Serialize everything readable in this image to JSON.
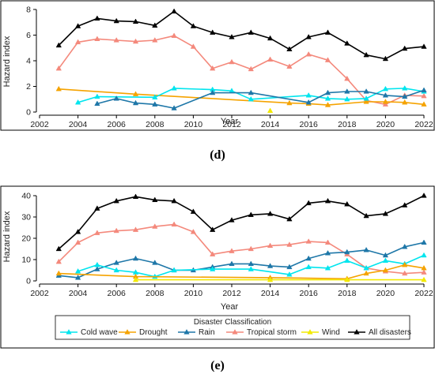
{
  "panels": [
    {
      "label": "(d)",
      "ylabel": "Hazard index",
      "xlabel": "Year"
    },
    {
      "label": "(e)",
      "ylabel": "Hazard index",
      "xlabel": "Year"
    }
  ],
  "legend": {
    "title": "Disaster Classification",
    "entries": [
      "Cold wave",
      "Drought",
      "Rain",
      "Tropical storm",
      "Wind",
      "All disasters"
    ]
  },
  "colors": {
    "Cold wave": "#00e5ee",
    "Drought": "#f5a300",
    "Rain": "#1e77a8",
    "Tropical storm": "#f4897c",
    "Wind": "#f2ea00",
    "All disasters": "#000000"
  },
  "chart_data": [
    {
      "type": "line",
      "xlabel": "Year",
      "ylabel": "Hazard index",
      "xlim": [
        2002,
        2022
      ],
      "ylim": [
        0,
        8
      ],
      "xticks": [
        2002,
        2004,
        2006,
        2008,
        2010,
        2012,
        2014,
        2016,
        2018,
        2020,
        2022
      ],
      "yticks": [
        0,
        2,
        4,
        6,
        8
      ],
      "grid": false,
      "series": [
        {
          "name": "All disasters",
          "marker": "triangle",
          "x": [
            2003,
            2004,
            2005,
            2006,
            2007,
            2008,
            2009,
            2010,
            2011,
            2012,
            2013,
            2014,
            2015,
            2016,
            2017,
            2018,
            2019,
            2020,
            2021,
            2022
          ],
          "y": [
            5.2,
            6.7,
            7.3,
            7.1,
            7.05,
            6.75,
            7.85,
            6.7,
            6.2,
            5.85,
            6.2,
            5.75,
            4.9,
            5.85,
            6.2,
            5.35,
            4.45,
            4.15,
            4.95,
            5.1
          ]
        },
        {
          "name": "Tropical storm",
          "marker": "triangle",
          "x": [
            2003,
            2004,
            2005,
            2006,
            2007,
            2008,
            2009,
            2010,
            2011,
            2012,
            2013,
            2014,
            2015,
            2016,
            2017,
            2018,
            2019,
            2020,
            2021,
            2022
          ],
          "y": [
            3.4,
            5.45,
            5.7,
            5.6,
            5.5,
            5.6,
            5.95,
            5.1,
            3.4,
            3.9,
            3.35,
            4.1,
            3.55,
            4.5,
            4.05,
            2.6,
            0.9,
            0.6,
            1.3,
            1.25
          ]
        },
        {
          "name": "Drought",
          "marker": "triangle",
          "x": [
            2003,
            2007,
            2015,
            2016,
            2017,
            2019,
            2020,
            2021,
            2022
          ],
          "y": [
            1.8,
            1.4,
            0.7,
            0.65,
            0.55,
            0.8,
            0.8,
            0.75,
            0.6
          ]
        },
        {
          "name": "Cold wave",
          "marker": "triangle",
          "x": [
            2004,
            2005,
            2008,
            2009,
            2011,
            2012,
            2013,
            2016,
            2017,
            2018,
            2019,
            2020,
            2021,
            2022
          ],
          "y": [
            0.75,
            1.2,
            1.15,
            1.85,
            1.75,
            1.65,
            1.0,
            1.3,
            1.05,
            1.0,
            1.05,
            1.8,
            1.85,
            1.6
          ]
        },
        {
          "name": "Rain",
          "marker": "triangle",
          "x": [
            2005,
            2006,
            2007,
            2008,
            2009,
            2011,
            2013,
            2016,
            2017,
            2018,
            2019,
            2020,
            2021,
            2022
          ],
          "y": [
            0.65,
            1.05,
            0.7,
            0.6,
            0.3,
            1.5,
            1.5,
            0.75,
            1.5,
            1.6,
            1.6,
            1.3,
            1.2,
            1.7
          ]
        },
        {
          "name": "Wind",
          "marker": "triangle",
          "x": [
            2014
          ],
          "y": [
            0.1
          ]
        }
      ]
    },
    {
      "type": "line",
      "xlabel": "Year",
      "ylabel": "Hazard index",
      "xlim": [
        2002,
        2022
      ],
      "ylim": [
        0,
        40
      ],
      "xticks": [
        2002,
        2004,
        2006,
        2008,
        2010,
        2012,
        2014,
        2016,
        2018,
        2020,
        2022
      ],
      "yticks": [
        0,
        10,
        20,
        30,
        40
      ],
      "grid": false,
      "legend_position": "bottom",
      "series": [
        {
          "name": "All disasters",
          "marker": "triangle",
          "x": [
            2003,
            2004,
            2005,
            2006,
            2007,
            2008,
            2009,
            2010,
            2011,
            2012,
            2013,
            2014,
            2015,
            2016,
            2017,
            2018,
            2019,
            2020,
            2021,
            2022
          ],
          "y": [
            15,
            23,
            34,
            37.5,
            39.5,
            38,
            37.5,
            32.5,
            24,
            28.5,
            31,
            31.5,
            29,
            36.5,
            37.5,
            36,
            30.5,
            31.5,
            35.5,
            40
          ]
        },
        {
          "name": "Tropical storm",
          "marker": "triangle",
          "x": [
            2003,
            2004,
            2005,
            2006,
            2007,
            2008,
            2009,
            2010,
            2011,
            2012,
            2013,
            2014,
            2015,
            2016,
            2017,
            2018,
            2019,
            2020,
            2021,
            2022
          ],
          "y": [
            9,
            18,
            22.5,
            23.5,
            24,
            25.5,
            26.5,
            23,
            12.5,
            14,
            15,
            16.5,
            17,
            18.5,
            18,
            12.5,
            6,
            4.5,
            3.5,
            4
          ]
        },
        {
          "name": "Rain",
          "marker": "triangle",
          "x": [
            2003,
            2004,
            2005,
            2006,
            2007,
            2008,
            2009,
            2010,
            2011,
            2012,
            2013,
            2014,
            2015,
            2016,
            2017,
            2018,
            2019,
            2020,
            2021,
            2022
          ],
          "y": [
            2.5,
            1.5,
            5.5,
            8.5,
            10.5,
            8.5,
            5,
            5,
            6.5,
            8,
            8,
            7,
            6.5,
            10.5,
            13,
            13.5,
            14.5,
            12,
            16,
            18
          ]
        },
        {
          "name": "Cold wave",
          "marker": "triangle",
          "x": [
            2004,
            2005,
            2006,
            2007,
            2008,
            2009,
            2011,
            2013,
            2015,
            2016,
            2017,
            2018,
            2019,
            2020,
            2021,
            2022
          ],
          "y": [
            4.5,
            7.5,
            5,
            4,
            2,
            5,
            5.5,
            5.5,
            3,
            6.5,
            6,
            9.5,
            6,
            9.5,
            8,
            12
          ]
        },
        {
          "name": "Drought",
          "marker": "triangle",
          "x": [
            2003,
            2007,
            2014,
            2018,
            2019,
            2020,
            2021,
            2022
          ],
          "y": [
            3.5,
            2,
            1.5,
            1,
            3.5,
            5,
            7.5,
            6
          ]
        },
        {
          "name": "Wind",
          "marker": "triangle",
          "x": [
            2007,
            2014,
            2018,
            2022
          ],
          "y": [
            0.5,
            0.5,
            0.5,
            0.5
          ]
        }
      ]
    }
  ]
}
